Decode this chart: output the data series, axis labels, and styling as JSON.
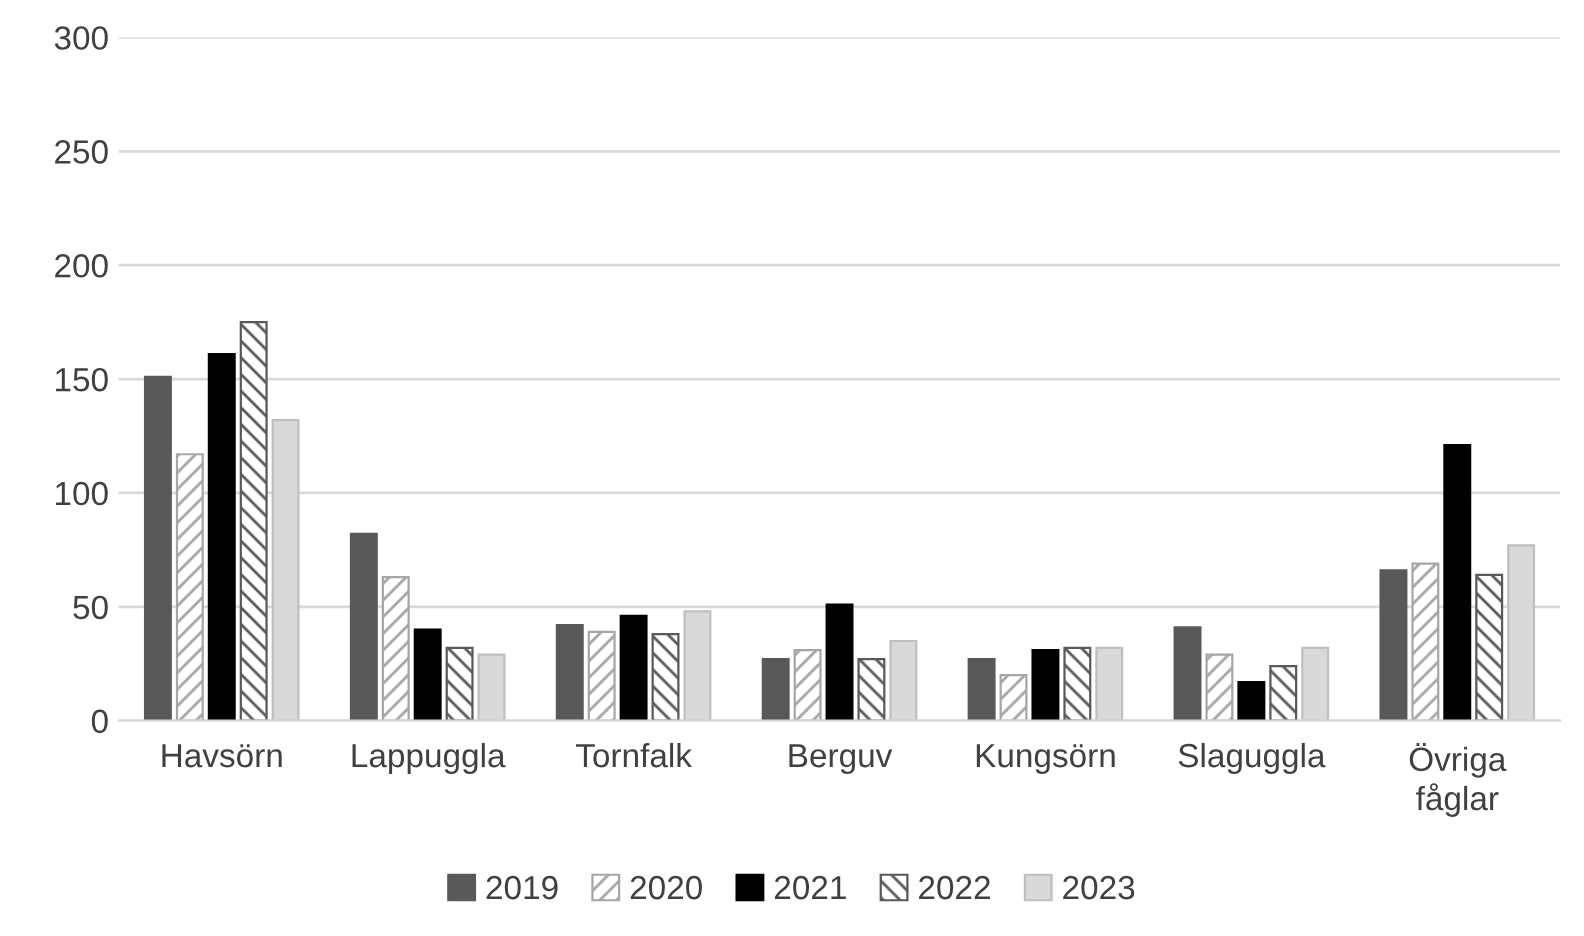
{
  "chart_data": {
    "type": "bar",
    "categories": [
      "Havsörn",
      "Lappuggla",
      "Tornfalk",
      "Berguv",
      "Kungsörn",
      "Slaguggla",
      "Övriga\nfåglar"
    ],
    "series": [
      {
        "name": "2019",
        "color": "#595959",
        "values": [
          151,
          82,
          42,
          27,
          27,
          41,
          66
        ]
      },
      {
        "name": "2020",
        "color": "#a6a6a6",
        "values": [
          117,
          63,
          39,
          31,
          20,
          29,
          69
        ]
      },
      {
        "name": "2021",
        "color": "#000000",
        "values": [
          161,
          40,
          46,
          51,
          31,
          17,
          121
        ]
      },
      {
        "name": "2022",
        "color": "#595959",
        "values": [
          175,
          32,
          38,
          27,
          32,
          24,
          64
        ]
      },
      {
        "name": "2023",
        "color": "#d9d9d9",
        "values": [
          132,
          29,
          48,
          35,
          32,
          32,
          77
        ]
      }
    ],
    "ylim": [
      0,
      300
    ],
    "yticks": [
      0,
      50,
      100,
      150,
      200,
      250,
      300
    ],
    "grid": "y",
    "legend": "bottom"
  }
}
